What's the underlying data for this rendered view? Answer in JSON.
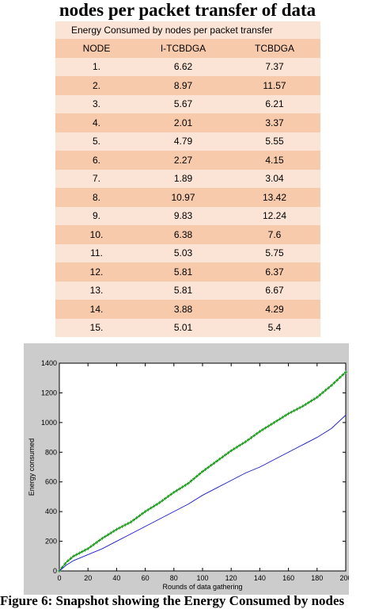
{
  "heading": "nodes per packet transfer of data",
  "table": {
    "title": "Energy Consumed by nodes per packet transfer",
    "headers": [
      "NODE",
      "I-TCBDGA",
      "TCBDGA"
    ],
    "rows": [
      [
        "1.",
        "6.62",
        "7.37"
      ],
      [
        "2.",
        "8.97",
        "11.57"
      ],
      [
        "3.",
        "5.67",
        "6.21"
      ],
      [
        "4.",
        "2.01",
        "3.37"
      ],
      [
        "5.",
        "4.79",
        "5.55"
      ],
      [
        "6.",
        "2.27",
        "4.15"
      ],
      [
        "7.",
        "1.89",
        "3.04"
      ],
      [
        "8.",
        "10.97",
        "13.42"
      ],
      [
        "9.",
        "9.83",
        "12.24"
      ],
      [
        "10.",
        "6.38",
        "7.6"
      ],
      [
        "11.",
        "5.03",
        "5.75"
      ],
      [
        "12.",
        "5.81",
        "6.37"
      ],
      [
        "13.",
        "5.81",
        "6.67"
      ],
      [
        "14.",
        "3.88",
        "4.29"
      ],
      [
        "15.",
        "5.01",
        "5.4"
      ]
    ]
  },
  "chart_data": {
    "type": "line",
    "title": "",
    "xlabel": "Rounds of data gathering",
    "ylabel": "Energy consumed",
    "xlim": [
      0,
      200
    ],
    "ylim": [
      0,
      1400
    ],
    "xticks": [
      0,
      20,
      40,
      60,
      80,
      100,
      120,
      140,
      160,
      180,
      200
    ],
    "yticks": [
      0,
      200,
      400,
      600,
      800,
      1000,
      1200,
      1400
    ],
    "grid": false,
    "series": [
      {
        "color": "#1a9a1a",
        "marker": "plus",
        "x": [
          0,
          5,
          10,
          20,
          30,
          40,
          50,
          60,
          70,
          80,
          90,
          100,
          110,
          120,
          130,
          140,
          150,
          160,
          170,
          180,
          190,
          200
        ],
        "y": [
          0,
          60,
          100,
          150,
          220,
          280,
          330,
          400,
          460,
          530,
          590,
          670,
          740,
          810,
          870,
          940,
          1000,
          1060,
          1110,
          1170,
          1250,
          1340
        ]
      },
      {
        "color": "#1a1acc",
        "marker": "none",
        "x": [
          0,
          5,
          10,
          20,
          30,
          40,
          50,
          60,
          70,
          80,
          90,
          100,
          110,
          120,
          130,
          140,
          150,
          160,
          170,
          180,
          190,
          200
        ],
        "y": [
          0,
          40,
          70,
          110,
          150,
          200,
          250,
          300,
          350,
          400,
          450,
          510,
          560,
          610,
          660,
          700,
          750,
          800,
          850,
          900,
          960,
          1050
        ]
      }
    ]
  },
  "figure_caption": "Figure 6: Snapshot showing the Energy Consumed by nodes"
}
